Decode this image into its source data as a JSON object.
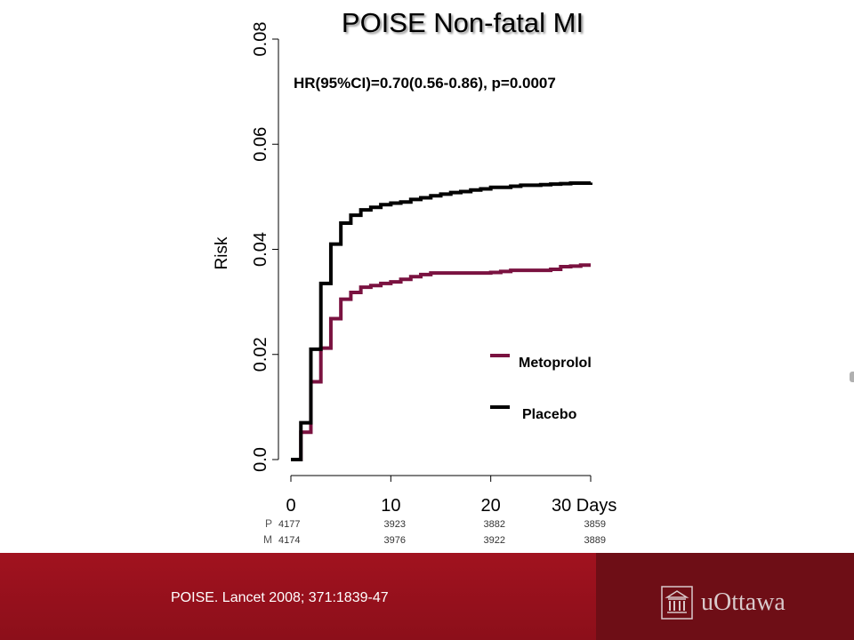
{
  "colors": {
    "metoprolol": "#7a1240",
    "placebo": "#000000",
    "footer": "#a1121f",
    "footer_dark": "#6e0e16"
  },
  "chart_data": {
    "type": "line",
    "title": "POISE Non-fatal MI",
    "annotation": "HR(95%CI)=0.70(0.56-0.86), p=0.0007",
    "ylabel": "Risk",
    "xlabel": "",
    "ylim": [
      0,
      0.08
    ],
    "xlim": [
      0,
      30
    ],
    "y_ticks": [
      "0.0",
      "0.02",
      "0.04",
      "0.06",
      "0.08"
    ],
    "x_ticks": [
      "0",
      "10",
      "20",
      "30 Days"
    ],
    "legend_position": "lower-right",
    "step": true,
    "series": [
      {
        "name": "Metoprolol",
        "color": "#7a1240",
        "x": [
          0,
          1,
          2,
          3,
          4,
          5,
          6,
          7,
          8,
          9,
          10,
          11,
          12,
          13,
          14,
          15,
          16,
          17,
          18,
          19,
          20,
          21,
          22,
          23,
          24,
          25,
          26,
          27,
          28,
          29,
          30
        ],
        "y": [
          0,
          0.0052,
          0.0148,
          0.0212,
          0.0268,
          0.0305,
          0.0318,
          0.0328,
          0.0331,
          0.0335,
          0.0338,
          0.0343,
          0.0348,
          0.0352,
          0.0355,
          0.0355,
          0.0355,
          0.0355,
          0.0355,
          0.0355,
          0.0356,
          0.0358,
          0.036,
          0.036,
          0.036,
          0.036,
          0.0362,
          0.0367,
          0.0368,
          0.037,
          0.037
        ]
      },
      {
        "name": "Placebo",
        "color": "#000000",
        "x": [
          0,
          1,
          2,
          3,
          4,
          5,
          6,
          7,
          8,
          9,
          10,
          11,
          12,
          13,
          14,
          15,
          16,
          17,
          18,
          19,
          20,
          21,
          22,
          23,
          24,
          25,
          26,
          27,
          28,
          29,
          30
        ],
        "y": [
          0,
          0.007,
          0.021,
          0.0335,
          0.041,
          0.045,
          0.0465,
          0.0475,
          0.048,
          0.0485,
          0.0488,
          0.049,
          0.0495,
          0.0498,
          0.0502,
          0.0505,
          0.0508,
          0.051,
          0.0513,
          0.0515,
          0.0518,
          0.0518,
          0.052,
          0.0522,
          0.0522,
          0.0523,
          0.0524,
          0.0525,
          0.0526,
          0.0526,
          0.0527
        ]
      }
    ],
    "at_risk": {
      "row_labels": [
        "P",
        "M"
      ],
      "times": [
        0,
        10,
        20,
        30
      ],
      "placebo": [
        "4177",
        "3923",
        "3882",
        "3859"
      ],
      "metoprolol": [
        "4174",
        "3976",
        "3922",
        "3889"
      ]
    }
  },
  "footer": {
    "citation": "POISE. Lancet 2008; 371:1839-47",
    "logo_text": "uOttawa"
  }
}
